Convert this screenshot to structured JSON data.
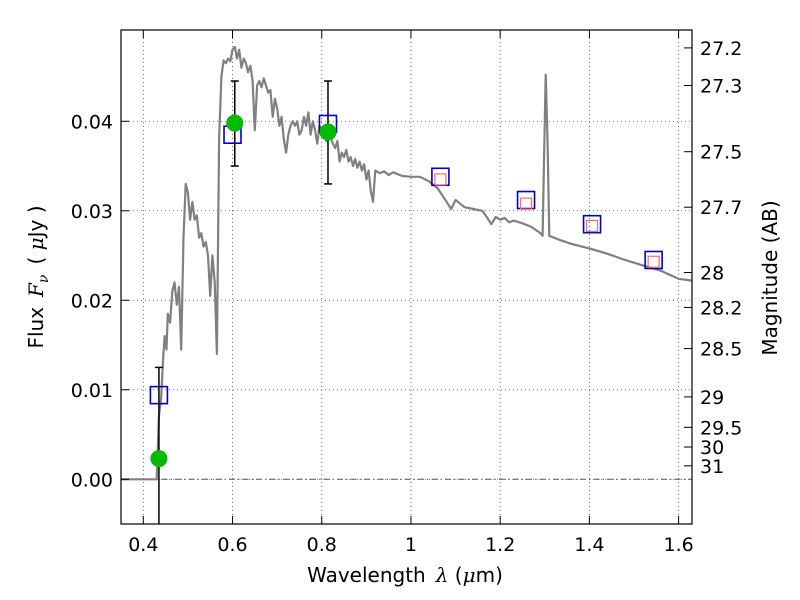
{
  "chart_data": {
    "type": "line",
    "xlabel": "Wavelength",
    "xlabel_math": "λ",
    "xlabel_unit_open": " (",
    "xlabel_unit_mu": "μ",
    "xlabel_unit_rest": "m)",
    "ylabel": "Flux",
    "ylabel_math": "F",
    "ylabel_sub": "ν",
    "ylabel_unit_open": "( ",
    "ylabel_unit_mu": "μ",
    "ylabel_unit_rest": "Jy )",
    "y2label": "Magnitude (AB)",
    "xlim": [
      0.35,
      1.63
    ],
    "ylim": [
      -0.005,
      0.0502
    ],
    "grid": true,
    "x_ticks": [
      0.4,
      0.6,
      0.8,
      1.0,
      1.2,
      1.4,
      1.6
    ],
    "x_tick_labels": [
      "0.4",
      "0.6",
      "0.8",
      "1",
      "1.2",
      "1.4",
      "1.6"
    ],
    "y_ticks": [
      0.0,
      0.01,
      0.02,
      0.03,
      0.04
    ],
    "y_tick_labels": [
      "0.00",
      "0.01",
      "0.02",
      "0.03",
      "0.04"
    ],
    "y2_ticks": [
      {
        "label": "27.2",
        "flux": 0.0482
      },
      {
        "label": "27.3",
        "flux": 0.044
      },
      {
        "label": "27.5",
        "flux": 0.0366
      },
      {
        "label": "27.7",
        "flux": 0.0304
      },
      {
        "label": "28",
        "flux": 0.0231
      },
      {
        "label": "28.2",
        "flux": 0.0192
      },
      {
        "label": "28.5",
        "flux": 0.0146
      },
      {
        "label": "29",
        "flux": 0.0092
      },
      {
        "label": "29.5",
        "flux": 0.0058
      },
      {
        "label": "30",
        "flux": 0.0036
      },
      {
        "label": "31",
        "flux": 0.0015
      }
    ],
    "series": [
      {
        "kind": "model-sed",
        "color": "#808080",
        "points": [
          [
            0.35,
            0.0
          ],
          [
            0.43,
            0.0
          ],
          [
            0.435,
            0.007
          ],
          [
            0.44,
            0.009
          ],
          [
            0.445,
            0.014
          ],
          [
            0.448,
            0.016
          ],
          [
            0.452,
            0.0145
          ],
          [
            0.455,
            0.0185
          ],
          [
            0.46,
            0.0175
          ],
          [
            0.465,
            0.021
          ],
          [
            0.47,
            0.022
          ],
          [
            0.475,
            0.0195
          ],
          [
            0.48,
            0.0215
          ],
          [
            0.485,
            0.0145
          ],
          [
            0.49,
            0.027
          ],
          [
            0.495,
            0.033
          ],
          [
            0.5,
            0.032
          ],
          [
            0.505,
            0.029
          ],
          [
            0.51,
            0.031
          ],
          [
            0.515,
            0.029
          ],
          [
            0.52,
            0.0295
          ],
          [
            0.525,
            0.027
          ],
          [
            0.53,
            0.0275
          ],
          [
            0.535,
            0.026
          ],
          [
            0.54,
            0.0265
          ],
          [
            0.545,
            0.025
          ],
          [
            0.55,
            0.0205
          ],
          [
            0.555,
            0.025
          ],
          [
            0.56,
            0.022
          ],
          [
            0.565,
            0.014
          ],
          [
            0.57,
            0.038
          ],
          [
            0.575,
            0.045
          ],
          [
            0.58,
            0.0468
          ],
          [
            0.585,
            0.0465
          ],
          [
            0.59,
            0.047
          ],
          [
            0.595,
            0.0467
          ],
          [
            0.6,
            0.048
          ],
          [
            0.605,
            0.0483
          ],
          [
            0.61,
            0.047
          ],
          [
            0.615,
            0.048
          ],
          [
            0.62,
            0.046
          ],
          [
            0.625,
            0.047
          ],
          [
            0.63,
            0.0465
          ],
          [
            0.635,
            0.0455
          ],
          [
            0.64,
            0.0462
          ],
          [
            0.645,
            0.0445
          ],
          [
            0.65,
            0.039
          ],
          [
            0.655,
            0.044
          ],
          [
            0.66,
            0.0445
          ],
          [
            0.665,
            0.0438
          ],
          [
            0.67,
            0.0448
          ],
          [
            0.675,
            0.044
          ],
          [
            0.68,
            0.0432
          ],
          [
            0.685,
            0.0435
          ],
          [
            0.69,
            0.0405
          ],
          [
            0.695,
            0.0425
          ],
          [
            0.7,
            0.0415
          ],
          [
            0.705,
            0.0395
          ],
          [
            0.71,
            0.0405
          ],
          [
            0.715,
            0.038
          ],
          [
            0.72,
            0.0365
          ],
          [
            0.725,
            0.0385
          ],
          [
            0.73,
            0.0395
          ],
          [
            0.735,
            0.04
          ],
          [
            0.74,
            0.0395
          ],
          [
            0.745,
            0.04
          ],
          [
            0.75,
            0.0385
          ],
          [
            0.755,
            0.039
          ],
          [
            0.76,
            0.0405
          ],
          [
            0.765,
            0.0395
          ],
          [
            0.77,
            0.041
          ],
          [
            0.775,
            0.0385
          ],
          [
            0.78,
            0.04
          ],
          [
            0.785,
            0.039
          ],
          [
            0.79,
            0.0375
          ],
          [
            0.795,
            0.0395
          ],
          [
            0.8,
            0.0385
          ],
          [
            0.805,
            0.039
          ],
          [
            0.81,
            0.0378
          ],
          [
            0.815,
            0.0392
          ],
          [
            0.82,
            0.0382
          ],
          [
            0.825,
            0.0375
          ],
          [
            0.83,
            0.037
          ],
          [
            0.835,
            0.0378
          ],
          [
            0.84,
            0.0355
          ],
          [
            0.845,
            0.0365
          ],
          [
            0.85,
            0.036
          ],
          [
            0.855,
            0.0368
          ],
          [
            0.86,
            0.0355
          ],
          [
            0.865,
            0.036
          ],
          [
            0.87,
            0.035
          ],
          [
            0.875,
            0.0358
          ],
          [
            0.88,
            0.0348
          ],
          [
            0.885,
            0.0355
          ],
          [
            0.89,
            0.0345
          ],
          [
            0.895,
            0.0352
          ],
          [
            0.9,
            0.0335
          ],
          [
            0.905,
            0.0345
          ],
          [
            0.91,
            0.0322
          ],
          [
            0.915,
            0.031
          ],
          [
            0.92,
            0.0345
          ],
          [
            0.93,
            0.0342
          ],
          [
            0.94,
            0.0344
          ],
          [
            0.95,
            0.034
          ],
          [
            0.96,
            0.0343
          ],
          [
            0.98,
            0.0339
          ],
          [
            1.0,
            0.0338
          ],
          [
            1.02,
            0.0338
          ],
          [
            1.04,
            0.0333
          ],
          [
            1.06,
            0.0325
          ],
          [
            1.08,
            0.031
          ],
          [
            1.09,
            0.0302
          ],
          [
            1.1,
            0.0312
          ],
          [
            1.12,
            0.0304
          ],
          [
            1.14,
            0.0302
          ],
          [
            1.16,
            0.03
          ],
          [
            1.17,
            0.0293
          ],
          [
            1.18,
            0.0285
          ],
          [
            1.19,
            0.0293
          ],
          [
            1.2,
            0.029
          ],
          [
            1.21,
            0.0292
          ],
          [
            1.22,
            0.0287
          ],
          [
            1.23,
            0.0289
          ],
          [
            1.25,
            0.0286
          ],
          [
            1.27,
            0.0282
          ],
          [
            1.29,
            0.0275
          ],
          [
            1.295,
            0.0272
          ],
          [
            1.298,
            0.035
          ],
          [
            1.302,
            0.0452
          ],
          [
            1.306,
            0.038
          ],
          [
            1.31,
            0.0272
          ],
          [
            1.33,
            0.0268
          ],
          [
            1.36,
            0.0263
          ],
          [
            1.4,
            0.0258
          ],
          [
            1.44,
            0.0252
          ],
          [
            1.48,
            0.0245
          ],
          [
            1.52,
            0.0239
          ],
          [
            1.56,
            0.0233
          ],
          [
            1.6,
            0.0224
          ],
          [
            1.63,
            0.0222
          ]
        ]
      },
      {
        "kind": "observed-photometry",
        "color": "#00bb00",
        "points": [
          [
            0.435,
            0.0023
          ],
          [
            0.605,
            0.0398
          ],
          [
            0.814,
            0.0388
          ]
        ],
        "errors": [
          [
            0.435,
            -0.0078,
            0.0125
          ],
          [
            0.605,
            0.035,
            0.0445
          ],
          [
            0.814,
            0.033,
            0.0445
          ]
        ]
      },
      {
        "kind": "model-bandpass-flux",
        "color": "#0000cc",
        "points": [
          [
            0.435,
            0.0094
          ],
          [
            0.6,
            0.0385
          ],
          [
            0.814,
            0.0397
          ],
          [
            1.066,
            0.0338
          ],
          [
            1.258,
            0.0312
          ],
          [
            1.406,
            0.0285
          ],
          [
            1.544,
            0.0245
          ]
        ]
      },
      {
        "kind": "upper-limits",
        "color": "#ff6666",
        "points": [
          [
            1.066,
            0.0335
          ],
          [
            1.258,
            0.0308
          ],
          [
            1.406,
            0.0283
          ],
          [
            1.544,
            0.0243
          ]
        ]
      }
    ]
  }
}
